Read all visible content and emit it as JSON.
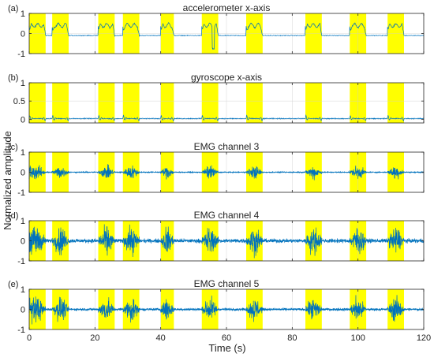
{
  "figure": {
    "ylabel": "Normalized amplitude",
    "xlabel": "Time (s)",
    "xlim": [
      0,
      120
    ],
    "xticks": [
      0,
      20,
      40,
      60,
      80,
      100,
      120
    ],
    "colors": {
      "signal": "#0072BD",
      "highlight": "#FFFF00",
      "axis": "#262626",
      "grid": "#E6E6E6"
    }
  },
  "chart_data": [
    {
      "type": "line",
      "panel": "(a)",
      "title": "accelerometer x-axis",
      "ylim": [
        -1,
        1
      ],
      "yticks": [
        -1,
        0,
        1
      ],
      "grid": true,
      "kind": "accelerometer",
      "highlight_intervals": [
        [
          0,
          5
        ],
        [
          7,
          12
        ],
        [
          21,
          26
        ],
        [
          28.5,
          33.5
        ],
        [
          40,
          44
        ],
        [
          52.5,
          57.5
        ],
        [
          66,
          71
        ],
        [
          84,
          89
        ],
        [
          97.5,
          102.5
        ],
        [
          109,
          114
        ]
      ],
      "active_level": 0.4,
      "baseline": -0.1
    },
    {
      "type": "line",
      "panel": "(b)",
      "title": "gyroscope x-axis",
      "ylim": [
        -0.1,
        1
      ],
      "yticks": [
        0,
        0.5,
        1
      ],
      "grid": true,
      "kind": "gyroscope",
      "highlight_intervals": [
        [
          0,
          5
        ],
        [
          7,
          12
        ],
        [
          21,
          26
        ],
        [
          28.5,
          33.5
        ],
        [
          40,
          44
        ],
        [
          52.5,
          57.5
        ],
        [
          66,
          71
        ],
        [
          84,
          89
        ],
        [
          97.5,
          102.5
        ],
        [
          109,
          114
        ]
      ],
      "baseline": 0.02
    },
    {
      "type": "line",
      "panel": "(c)",
      "title": "EMG channel 3",
      "ylim": [
        -1,
        1
      ],
      "yticks": [
        -1,
        0,
        1
      ],
      "grid": true,
      "kind": "emg",
      "highlight_intervals": [
        [
          0,
          5
        ],
        [
          7,
          12
        ],
        [
          21,
          26
        ],
        [
          28.5,
          33.5
        ],
        [
          40,
          44
        ],
        [
          52.5,
          57.5
        ],
        [
          66,
          71
        ],
        [
          84,
          89
        ],
        [
          97.5,
          102.5
        ],
        [
          109,
          114
        ]
      ],
      "burst_amplitude": 0.25,
      "noise_amplitude": 0.02
    },
    {
      "type": "line",
      "panel": "(d)",
      "title": "EMG channel 4",
      "ylim": [
        -1,
        1
      ],
      "yticks": [
        -1,
        0,
        1
      ],
      "grid": true,
      "kind": "emg",
      "highlight_intervals": [
        [
          0,
          5
        ],
        [
          7,
          12
        ],
        [
          21,
          26
        ],
        [
          28.5,
          33.5
        ],
        [
          40,
          44
        ],
        [
          52.5,
          57.5
        ],
        [
          66,
          71
        ],
        [
          84,
          89
        ],
        [
          97.5,
          102.5
        ],
        [
          109,
          114
        ]
      ],
      "burst_amplitude": 0.5,
      "noise_amplitude": 0.08
    },
    {
      "type": "line",
      "panel": "(e)",
      "title": "EMG channel 5",
      "ylim": [
        -1,
        1
      ],
      "yticks": [
        -1,
        0,
        1
      ],
      "grid": true,
      "kind": "emg",
      "highlight_intervals": [
        [
          0,
          5
        ],
        [
          7,
          12
        ],
        [
          21,
          26
        ],
        [
          28.5,
          33.5
        ],
        [
          40,
          44
        ],
        [
          52.5,
          57.5
        ],
        [
          66,
          71
        ],
        [
          84,
          89
        ],
        [
          97.5,
          102.5
        ],
        [
          109,
          114
        ]
      ],
      "burst_amplitude": 0.45,
      "noise_amplitude": 0.05
    }
  ]
}
